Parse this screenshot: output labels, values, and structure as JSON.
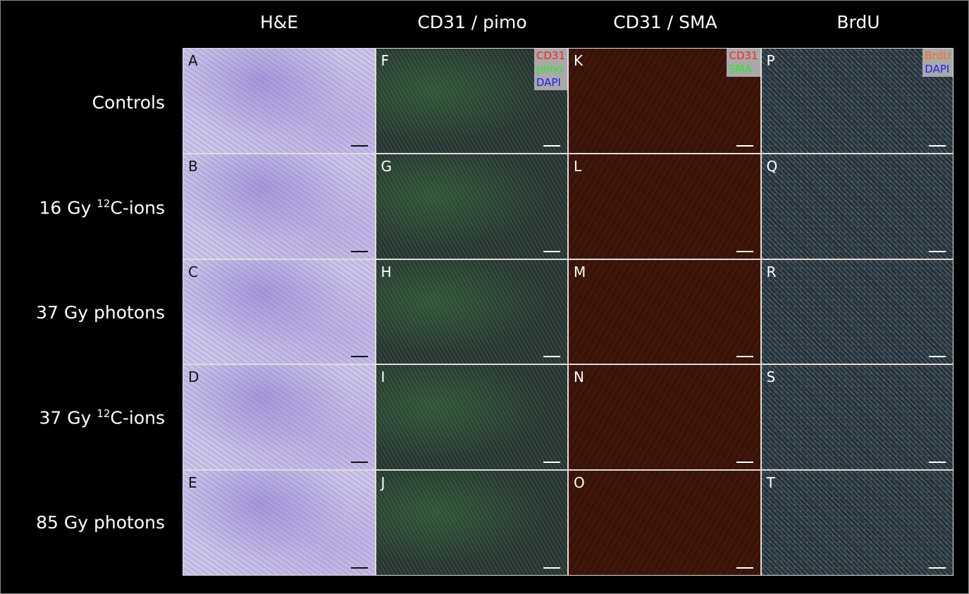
{
  "columns": [
    "H&E",
    "CD31 / pimo",
    "CD31 / SMA",
    "BrdU"
  ],
  "rows": [
    {
      "label": "Controls",
      "sup": "",
      "suffix": ""
    },
    {
      "label": "16 Gy ",
      "sup": "12",
      "suffix": "C-ions"
    },
    {
      "label": "37 Gy photons",
      "sup": "",
      "suffix": ""
    },
    {
      "label": "37 Gy ",
      "sup": "12",
      "suffix": "C-ions"
    },
    {
      "label": "85 Gy photons",
      "sup": "",
      "suffix": ""
    }
  ],
  "panel_letters": [
    [
      "A",
      "F",
      "K",
      "P"
    ],
    [
      "B",
      "G",
      "L",
      "Q"
    ],
    [
      "C",
      "H",
      "M",
      "R"
    ],
    [
      "D",
      "I",
      "N",
      "S"
    ],
    [
      "E",
      "J",
      "O",
      "T"
    ]
  ],
  "legends": {
    "pimo": [
      {
        "text": "CD31",
        "color": "#ff2020"
      },
      {
        "text": "pimo",
        "color": "#22ee22"
      },
      {
        "text": "DAPI",
        "color": "#1a1aff"
      }
    ],
    "sma": [
      {
        "text": "CD31",
        "color": "#ff2020"
      },
      {
        "text": "SMA",
        "color": "#22ee22"
      }
    ],
    "brdu": [
      {
        "text": "BrdU",
        "color": "#ff6a20"
      },
      {
        "text": "DAPI",
        "color": "#1a1aff"
      }
    ]
  }
}
